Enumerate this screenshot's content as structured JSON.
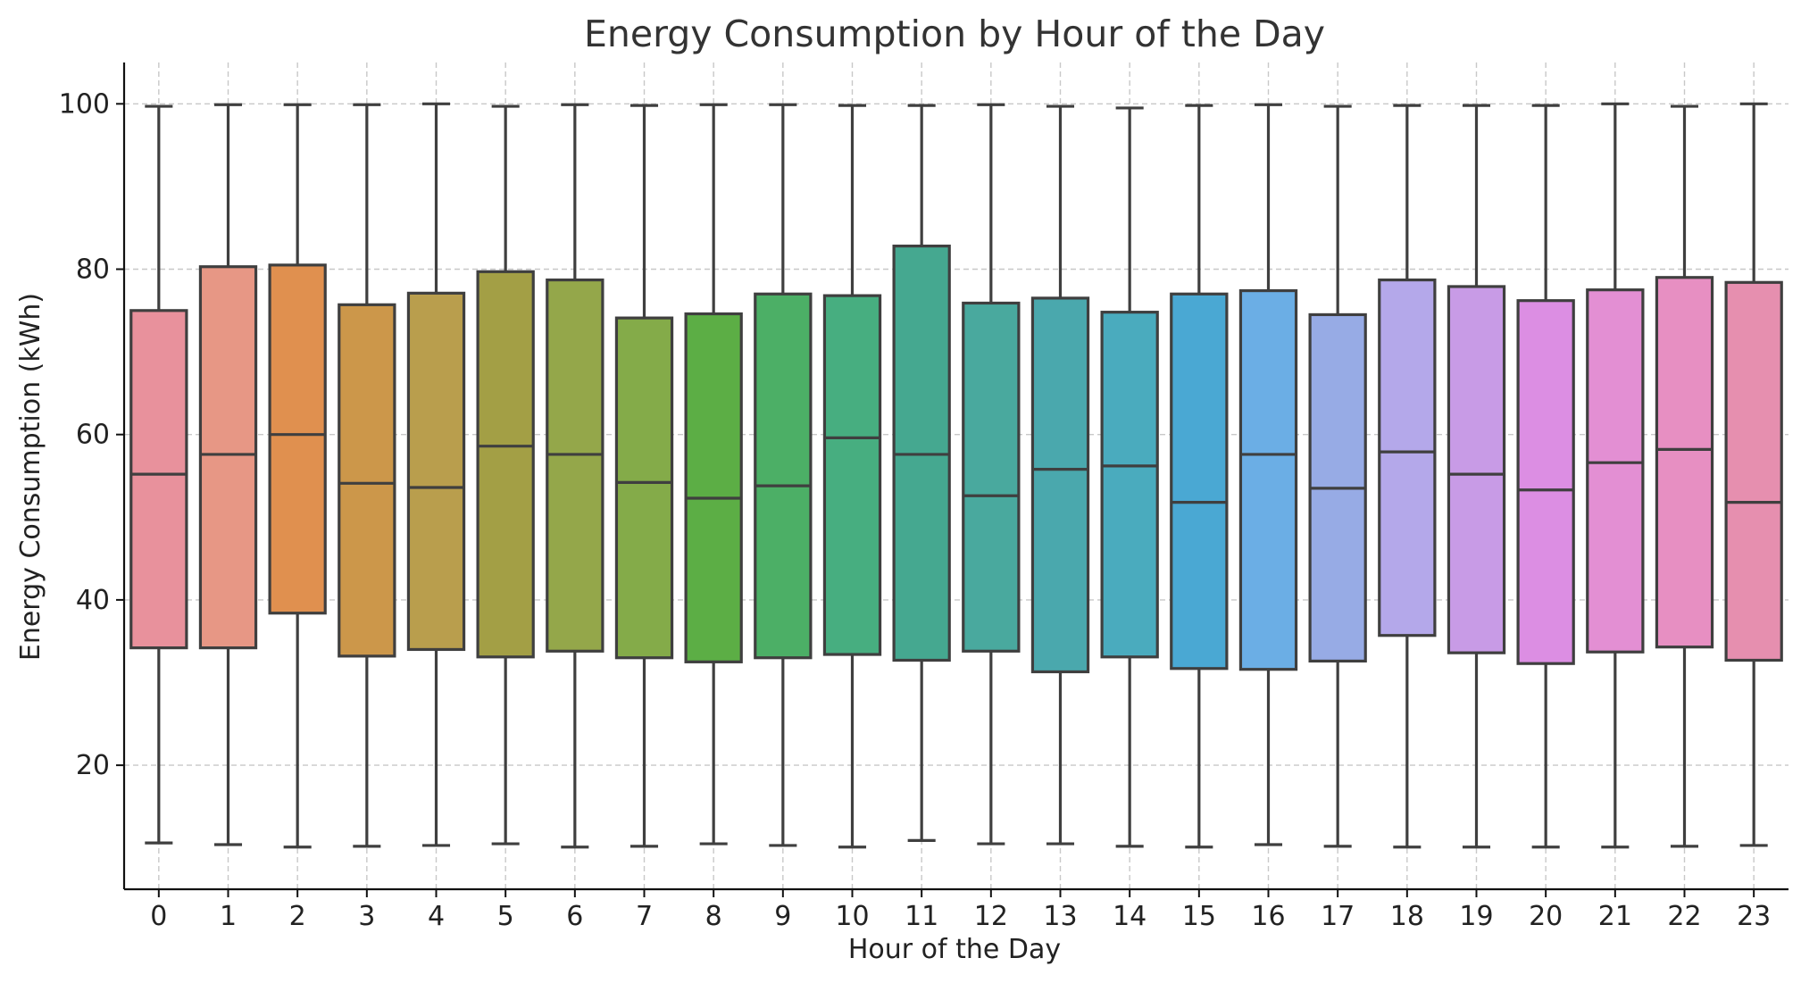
{
  "chart_data": {
    "type": "box",
    "title": "Energy Consumption by Hour of the Day",
    "xlabel": "Hour of the Day",
    "ylabel": "Energy Consumption (kWh)",
    "ylim": [
      5,
      105
    ],
    "yticks": [
      20,
      40,
      60,
      80,
      100
    ],
    "grid": true,
    "categories": [
      "0",
      "1",
      "2",
      "3",
      "4",
      "5",
      "6",
      "7",
      "8",
      "9",
      "10",
      "11",
      "12",
      "13",
      "14",
      "15",
      "16",
      "17",
      "18",
      "19",
      "20",
      "21",
      "22",
      "23"
    ],
    "boxes": [
      {
        "min": 10.6,
        "q1": 34.2,
        "median": 55.2,
        "q3": 75.0,
        "max": 99.7,
        "color": "#e8919c"
      },
      {
        "min": 10.4,
        "q1": 34.2,
        "median": 57.6,
        "q3": 80.3,
        "max": 99.9,
        "color": "#e79785"
      },
      {
        "min": 10.1,
        "q1": 38.4,
        "median": 60.0,
        "q3": 80.5,
        "max": 99.9,
        "color": "#e0904f"
      },
      {
        "min": 10.2,
        "q1": 33.2,
        "median": 54.1,
        "q3": 75.7,
        "max": 99.9,
        "color": "#cc974a"
      },
      {
        "min": 10.3,
        "q1": 34.0,
        "median": 53.6,
        "q3": 77.1,
        "max": 100.0,
        "color": "#b99e4d"
      },
      {
        "min": 10.5,
        "q1": 33.1,
        "median": 58.6,
        "q3": 79.7,
        "max": 99.7,
        "color": "#a39f45"
      },
      {
        "min": 10.1,
        "q1": 33.8,
        "median": 57.6,
        "q3": 78.7,
        "max": 99.9,
        "color": "#94a74a"
      },
      {
        "min": 10.2,
        "q1": 33.0,
        "median": 54.2,
        "q3": 74.1,
        "max": 99.8,
        "color": "#84ab49"
      },
      {
        "min": 10.5,
        "q1": 32.5,
        "median": 52.3,
        "q3": 74.6,
        "max": 99.9,
        "color": "#5cae45"
      },
      {
        "min": 10.3,
        "q1": 33.0,
        "median": 53.8,
        "q3": 77.0,
        "max": 99.9,
        "color": "#4caf66"
      },
      {
        "min": 10.1,
        "q1": 33.4,
        "median": 59.6,
        "q3": 76.8,
        "max": 99.8,
        "color": "#47ae80"
      },
      {
        "min": 10.9,
        "q1": 32.7,
        "median": 57.6,
        "q3": 82.8,
        "max": 99.8,
        "color": "#45a890"
      },
      {
        "min": 10.5,
        "q1": 33.8,
        "median": 52.6,
        "q3": 75.9,
        "max": 99.9,
        "color": "#49a99e"
      },
      {
        "min": 10.5,
        "q1": 31.3,
        "median": 55.8,
        "q3": 76.5,
        "max": 99.7,
        "color": "#4aa8ad"
      },
      {
        "min": 10.2,
        "q1": 33.1,
        "median": 56.2,
        "q3": 74.8,
        "max": 99.5,
        "color": "#4aabbe"
      },
      {
        "min": 10.1,
        "q1": 31.7,
        "median": 51.8,
        "q3": 77.0,
        "max": 99.8,
        "color": "#4aa8d3"
      },
      {
        "min": 10.4,
        "q1": 31.6,
        "median": 57.6,
        "q3": 77.4,
        "max": 99.9,
        "color": "#6baee5"
      },
      {
        "min": 10.2,
        "q1": 32.6,
        "median": 53.5,
        "q3": 74.5,
        "max": 99.7,
        "color": "#97abe5"
      },
      {
        "min": 10.1,
        "q1": 35.7,
        "median": 57.9,
        "q3": 78.7,
        "max": 99.8,
        "color": "#b4a8ea"
      },
      {
        "min": 10.1,
        "q1": 33.6,
        "median": 55.2,
        "q3": 77.9,
        "max": 99.8,
        "color": "#c89be6"
      },
      {
        "min": 10.1,
        "q1": 32.3,
        "median": 53.3,
        "q3": 76.2,
        "max": 99.8,
        "color": "#dc8ee3"
      },
      {
        "min": 10.1,
        "q1": 33.7,
        "median": 56.6,
        "q3": 77.5,
        "max": 100.0,
        "color": "#e38fd3"
      },
      {
        "min": 10.2,
        "q1": 34.3,
        "median": 58.2,
        "q3": 79.0,
        "max": 99.7,
        "color": "#e78fc2"
      },
      {
        "min": 10.3,
        "q1": 32.7,
        "median": 51.8,
        "q3": 78.4,
        "max": 100.0,
        "color": "#e68faf"
      }
    ]
  }
}
